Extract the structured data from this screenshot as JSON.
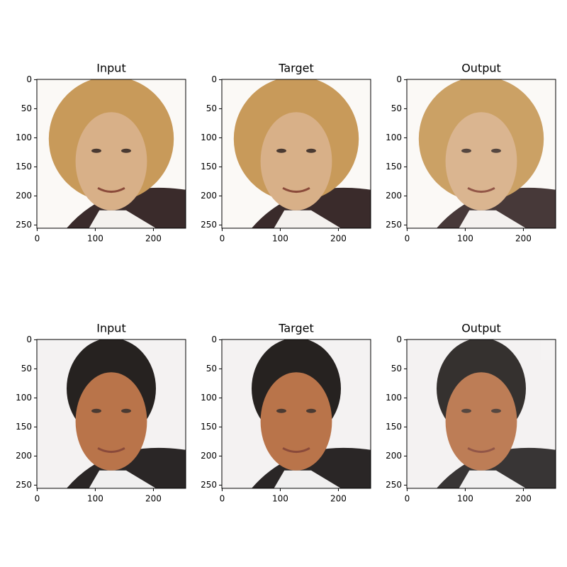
{
  "chart_data": [
    {
      "type": "image",
      "title": "Input",
      "xlim": [
        -0.5,
        255.5
      ],
      "ylim": [
        255.5,
        -0.5
      ],
      "xticks": [
        0,
        100,
        200
      ],
      "yticks": [
        0,
        50,
        100,
        150,
        200,
        250
      ]
    },
    {
      "type": "image",
      "title": "Target",
      "xlim": [
        -0.5,
        255.5
      ],
      "ylim": [
        255.5,
        -0.5
      ],
      "xticks": [
        0,
        100,
        200
      ],
      "yticks": [
        0,
        50,
        100,
        150,
        200,
        250
      ]
    },
    {
      "type": "image",
      "title": "Output",
      "xlim": [
        -0.5,
        255.5
      ],
      "ylim": [
        255.5,
        -0.5
      ],
      "xticks": [
        0,
        100,
        200
      ],
      "yticks": [
        0,
        50,
        100,
        150,
        200,
        250
      ]
    },
    {
      "type": "image",
      "title": "Input",
      "xlim": [
        -0.5,
        255.5
      ],
      "ylim": [
        255.5,
        -0.5
      ],
      "xticks": [
        0,
        100,
        200
      ],
      "yticks": [
        0,
        50,
        100,
        150,
        200,
        250
      ]
    },
    {
      "type": "image",
      "title": "Target",
      "xlim": [
        -0.5,
        255.5
      ],
      "ylim": [
        255.5,
        -0.5
      ],
      "xticks": [
        0,
        100,
        200
      ],
      "yticks": [
        0,
        50,
        100,
        150,
        200,
        250
      ]
    },
    {
      "type": "image",
      "title": "Output",
      "xlim": [
        -0.5,
        255.5
      ],
      "ylim": [
        255.5,
        -0.5
      ],
      "xticks": [
        0,
        100,
        200
      ],
      "yticks": [
        0,
        50,
        100,
        150,
        200,
        250
      ]
    }
  ]
}
